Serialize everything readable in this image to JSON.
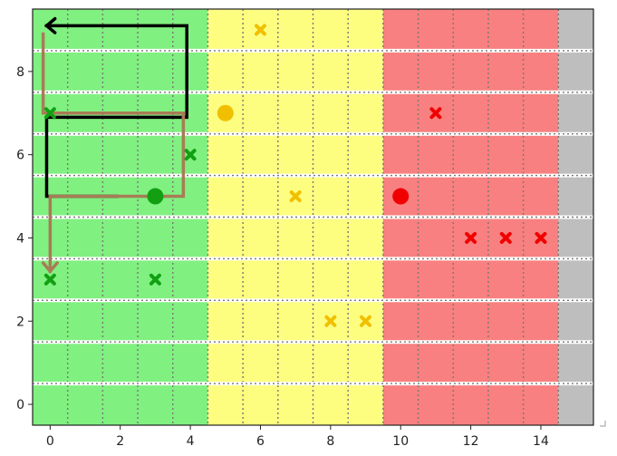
{
  "chart_data": {
    "type": "scatter",
    "title": "",
    "xlabel": "",
    "ylabel": "",
    "xlim": [
      -0.5,
      15.5
    ],
    "ylim": [
      -0.5,
      9.5
    ],
    "xticks": [
      "0",
      "2",
      "4",
      "6",
      "8",
      "10",
      "12",
      "14"
    ],
    "yticks": [
      "0",
      "2",
      "4",
      "6",
      "8"
    ],
    "grid": true,
    "background_zones": [
      {
        "zone": "green",
        "x_range": [
          -0.5,
          4.5
        ],
        "color": "#80f080"
      },
      {
        "zone": "yellow",
        "x_range": [
          4.5,
          9.5
        ],
        "color": "#fdfd80"
      },
      {
        "zone": "red",
        "x_range": [
          9.5,
          14.5
        ],
        "color": "#f98080"
      },
      {
        "zone": "gray",
        "x_range": [
          14.5,
          15.5
        ],
        "color": "#bebebe"
      }
    ],
    "markers": [
      {
        "marker": "x",
        "color": "#12a012",
        "x": 0,
        "y": 7
      },
      {
        "marker": "x",
        "color": "#12a012",
        "x": 4,
        "y": 6
      },
      {
        "marker": "circle",
        "color": "#12a012",
        "x": 3,
        "y": 5
      },
      {
        "marker": "x",
        "color": "#12a012",
        "x": 0,
        "y": 3
      },
      {
        "marker": "x",
        "color": "#12a012",
        "x": 3,
        "y": 3
      },
      {
        "marker": "x",
        "color": "#f0c000",
        "x": 6,
        "y": 9
      },
      {
        "marker": "circle",
        "color": "#f0c000",
        "x": 5,
        "y": 7
      },
      {
        "marker": "x",
        "color": "#f0c000",
        "x": 7,
        "y": 5
      },
      {
        "marker": "x",
        "color": "#f0c000",
        "x": 8,
        "y": 2
      },
      {
        "marker": "x",
        "color": "#f0c000",
        "x": 9,
        "y": 2
      },
      {
        "marker": "x",
        "color": "#f00000",
        "x": 11,
        "y": 7
      },
      {
        "marker": "circle",
        "color": "#f00000",
        "x": 10,
        "y": 5
      },
      {
        "marker": "x",
        "color": "#f00000",
        "x": 12,
        "y": 4
      },
      {
        "marker": "x",
        "color": "#f00000",
        "x": 13,
        "y": 4
      },
      {
        "marker": "x",
        "color": "#f00000",
        "x": 14,
        "y": 4
      }
    ],
    "paths": [
      {
        "color": "#000000",
        "points": [
          [
            -0.1,
            9.1
          ],
          [
            3.9,
            9.1
          ],
          [
            3.9,
            6.9
          ],
          [
            -0.1,
            6.9
          ],
          [
            -0.1,
            5.0
          ],
          [
            1.9,
            5.0
          ]
        ],
        "arrow_end": "start"
      },
      {
        "color": "#a87c56",
        "points": [
          [
            -0.2,
            8.9
          ],
          [
            -0.2,
            7.0
          ],
          [
            3.8,
            7.0
          ],
          [
            3.8,
            5.0
          ],
          [
            0.0,
            5.0
          ],
          [
            0.0,
            3.2
          ]
        ],
        "arrow_end": "end"
      }
    ]
  }
}
